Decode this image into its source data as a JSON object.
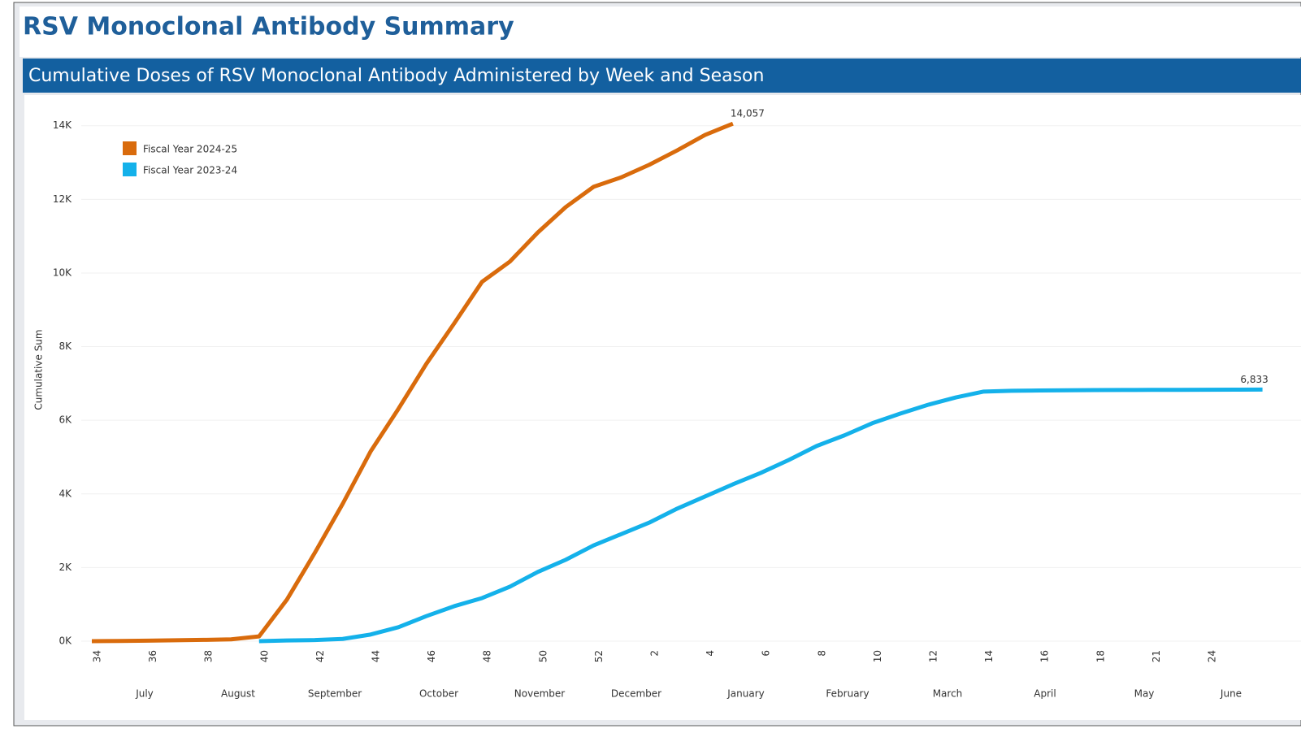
{
  "header": {
    "title": "RSV Monoclonal Antibody Summary"
  },
  "chart_data": {
    "type": "line",
    "title": "Cumulative Doses of RSV Monoclonal Antibody Administered by Week and Season",
    "y_label": "Cumulative Sum",
    "categories": [
      "34",
      null,
      "36",
      null,
      "38",
      null,
      "40",
      null,
      "42",
      null,
      "44",
      null,
      "46",
      null,
      "48",
      null,
      "50",
      null,
      "52",
      null,
      "2",
      null,
      "4",
      null,
      "6",
      null,
      "8",
      null,
      "10",
      null,
      "12",
      null,
      "14",
      null,
      "16",
      null,
      "18",
      null,
      "21",
      null,
      "24",
      null,
      null
    ],
    "months": [
      "July",
      "August",
      "September",
      "October",
      "November",
      "December",
      "January",
      "February",
      "March",
      "April",
      "May",
      "June"
    ],
    "ylim": [
      0,
      14700
    ],
    "yticks": [
      {
        "value": 0,
        "label": "0K"
      },
      {
        "value": 2000,
        "label": "2K"
      },
      {
        "value": 4000,
        "label": "4K"
      },
      {
        "value": 6000,
        "label": "6K"
      },
      {
        "value": 8000,
        "label": "8K"
      },
      {
        "value": 10000,
        "label": "10K"
      },
      {
        "value": 12000,
        "label": "12K"
      },
      {
        "value": 14000,
        "label": "14K"
      }
    ],
    "grid": true,
    "legend": "top-left",
    "series": [
      {
        "name": "Fiscal Year 2024-25",
        "color": "#d96b0c",
        "values": [
          0,
          5,
          15,
          25,
          35,
          50,
          130,
          1130,
          2400,
          3730,
          5150,
          6310,
          7530,
          8630,
          9760,
          10310,
          11100,
          11790,
          12340,
          12600,
          12940,
          13330,
          13750,
          14057,
          null,
          null,
          null,
          null,
          null,
          null,
          null,
          null,
          null,
          null,
          null,
          null,
          null,
          null,
          null,
          null,
          null,
          null,
          null
        ],
        "value_labels": [
          null,
          null,
          null,
          null,
          null,
          null,
          null,
          null,
          null,
          null,
          null,
          null,
          null,
          null,
          null,
          null,
          null,
          null,
          null,
          null,
          null,
          null,
          null,
          "14,057",
          null,
          null,
          null,
          null,
          null,
          null,
          null,
          null,
          null,
          null,
          null,
          null,
          null,
          null,
          null,
          null,
          null,
          null,
          null
        ]
      },
      {
        "name": "Fiscal Year 2023-24",
        "color": "#14b1ea",
        "values": [
          null,
          null,
          null,
          null,
          null,
          null,
          0,
          20,
          30,
          60,
          180,
          380,
          680,
          950,
          1170,
          1480,
          1880,
          2210,
          2600,
          2910,
          3220,
          3600,
          3930,
          4260,
          4570,
          4920,
          5300,
          5590,
          5920,
          6180,
          6420,
          6620,
          6780,
          6800,
          6810,
          6815,
          6820,
          6822,
          6825,
          6827,
          6829,
          6831,
          6833
        ],
        "value_labels": [
          null,
          null,
          null,
          null,
          null,
          null,
          null,
          null,
          null,
          null,
          null,
          null,
          null,
          null,
          null,
          null,
          null,
          null,
          null,
          null,
          null,
          null,
          null,
          null,
          null,
          null,
          null,
          null,
          null,
          null,
          null,
          null,
          null,
          null,
          null,
          null,
          null,
          null,
          null,
          null,
          null,
          null,
          "6,833"
        ]
      }
    ]
  }
}
